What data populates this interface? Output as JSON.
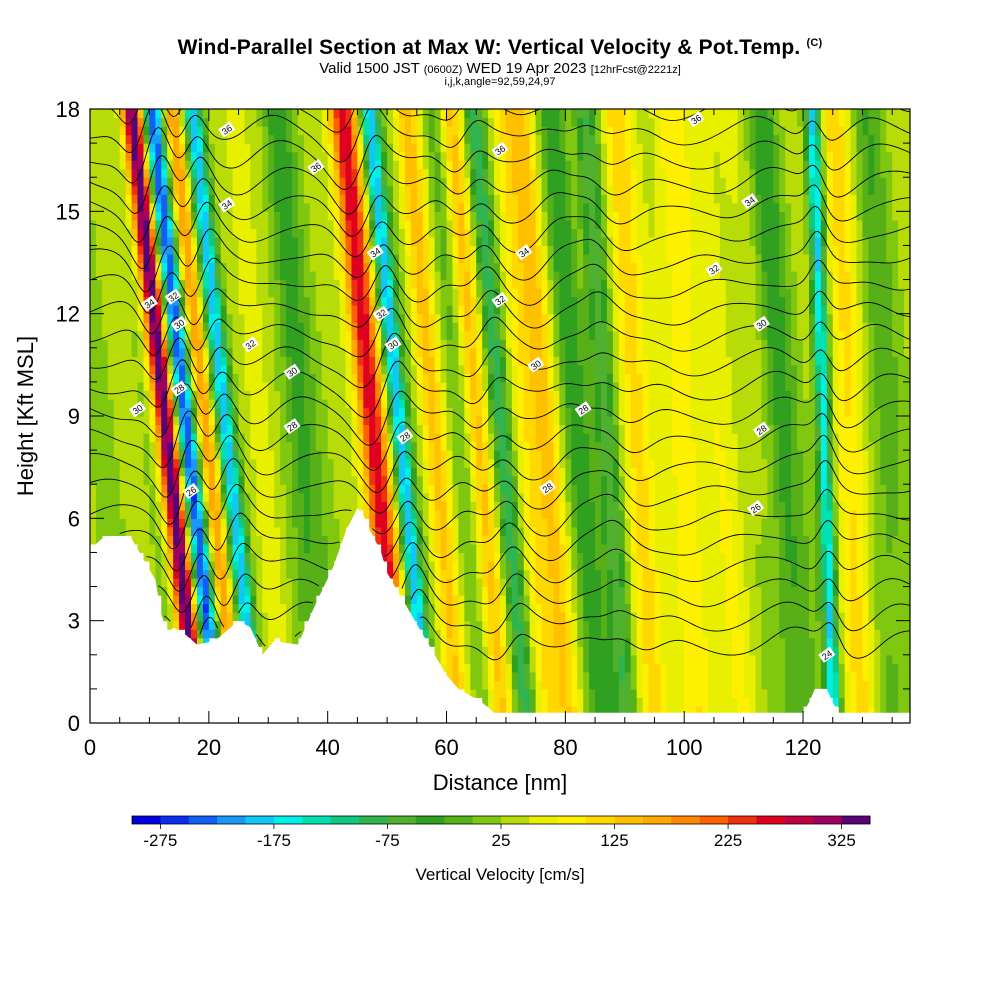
{
  "header": {
    "title": "Wind-Parallel Section at Max W: Vertical Velocity & Pot.Temp.",
    "copyright": "(C)",
    "valid_prefix": "Valid 1500 JST",
    "valid_utc": "(0600Z)",
    "valid_date": "WED 19 Apr 2023",
    "forecast": "[12hrFcst@2221z]",
    "grid_info": "i,j,k,angle=92,59,24,97"
  },
  "chart_data": {
    "type": "heatmap",
    "xlabel": "Distance [nm]",
    "ylabel": "Height [Kft MSL]",
    "xlim": [
      0,
      138
    ],
    "ylim": [
      0,
      18
    ],
    "x_ticks": [
      0,
      20,
      40,
      60,
      80,
      100,
      120
    ],
    "y_ticks": [
      0,
      3,
      6,
      9,
      12,
      15,
      18
    ],
    "colorbar": {
      "title": "Vertical Velocity [cm/s]",
      "range": [
        -300,
        350
      ],
      "step": 25,
      "tick_values": [
        -275,
        -175,
        -75,
        25,
        125,
        225,
        325
      ],
      "tick_labels": [
        "-275",
        "-175",
        "-75",
        "25",
        "125",
        "225",
        "325"
      ],
      "colors": [
        "#0000e0",
        "#0a2cf0",
        "#1060f8",
        "#1898f8",
        "#10c8f8",
        "#00f0e8",
        "#00e0b0",
        "#10c880",
        "#30b450",
        "#50b030",
        "#30a020",
        "#58b018",
        "#80c810",
        "#b8dc08",
        "#e8f000",
        "#fff000",
        "#ffd800",
        "#ffc000",
        "#ffa800",
        "#ff8800",
        "#ff6000",
        "#f03010",
        "#e00020",
        "#c00040",
        "#a00060",
        "#5a0078"
      ]
    },
    "updrafts_nm": [
      14,
      21,
      49,
      59,
      66,
      78,
      92,
      100,
      128
    ],
    "downdrafts_nm": [
      17,
      24,
      53,
      70,
      88,
      124
    ],
    "contour_labels": [
      {
        "text": "36",
        "x": 23,
        "y": 17.4
      },
      {
        "text": "36",
        "x": 38,
        "y": 16.3
      },
      {
        "text": "36",
        "x": 69,
        "y": 16.8
      },
      {
        "text": "36",
        "x": 102,
        "y": 17.7
      },
      {
        "text": "34",
        "x": 23,
        "y": 15.2
      },
      {
        "text": "34",
        "x": 48,
        "y": 13.8
      },
      {
        "text": "34",
        "x": 73,
        "y": 13.8
      },
      {
        "text": "34",
        "x": 111,
        "y": 15.3
      },
      {
        "text": "34",
        "x": 10,
        "y": 12.3
      },
      {
        "text": "32",
        "x": 14,
        "y": 12.5
      },
      {
        "text": "32",
        "x": 49,
        "y": 12.0
      },
      {
        "text": "32",
        "x": 27,
        "y": 11.1
      },
      {
        "text": "32",
        "x": 69,
        "y": 12.4
      },
      {
        "text": "32",
        "x": 105,
        "y": 13.3
      },
      {
        "text": "30",
        "x": 15,
        "y": 11.7
      },
      {
        "text": "30",
        "x": 51,
        "y": 11.1
      },
      {
        "text": "30",
        "x": 34,
        "y": 10.3
      },
      {
        "text": "30",
        "x": 75,
        "y": 10.5
      },
      {
        "text": "30",
        "x": 113,
        "y": 11.7
      },
      {
        "text": "30",
        "x": 8,
        "y": 9.2
      },
      {
        "text": "28",
        "x": 15,
        "y": 9.8
      },
      {
        "text": "28",
        "x": 34,
        "y": 8.7
      },
      {
        "text": "28",
        "x": 53,
        "y": 8.4
      },
      {
        "text": "28",
        "x": 83,
        "y": 9.2
      },
      {
        "text": "28",
        "x": 113,
        "y": 8.6
      },
      {
        "text": "28",
        "x": 77,
        "y": 6.9
      },
      {
        "text": "26",
        "x": 17,
        "y": 6.8
      },
      {
        "text": "26",
        "x": 112,
        "y": 6.3
      },
      {
        "text": "24",
        "x": 124,
        "y": 2.0
      }
    ]
  }
}
